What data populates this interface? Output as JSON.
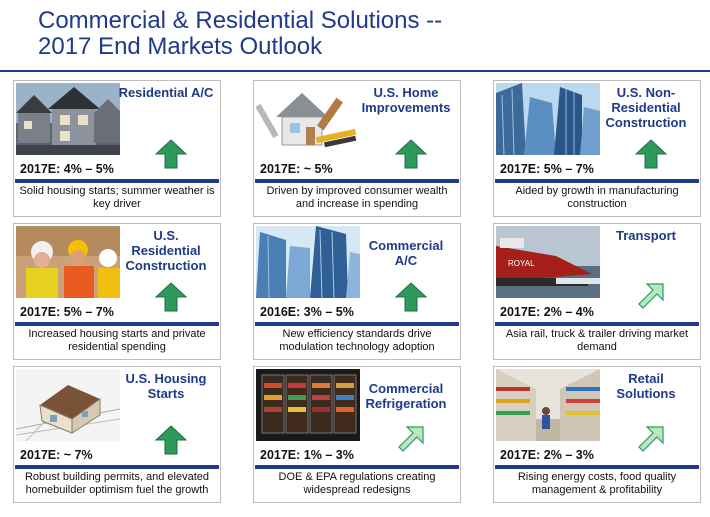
{
  "title": {
    "line1": "Commercial & Residential Solutions --",
    "line2": "2017 End Markets Outlook"
  },
  "colors": {
    "title": "#1f3a8a",
    "bar": "#1f3a8a",
    "arrow_dark": "#2e9a5a",
    "arrow_light": "#b7e8c6"
  },
  "cards": [
    {
      "label": "Residential A/C",
      "estimate": "2017E:  4% – 5%",
      "description": "Solid housing starts; summer weather is key driver",
      "arrow": "up",
      "image": "houses-photo"
    },
    {
      "label": "U.S. Home Improvements",
      "estimate": "2017E: ~ 5%",
      "description": "Driven by improved consumer wealth and increase in spending",
      "arrow": "up",
      "image": "tools-house-photo"
    },
    {
      "label": "U.S. Non-Residential Construction",
      "estimate": "2017E: 5% – 7%",
      "description": "Aided by growth in manufacturing construction",
      "arrow": "up",
      "image": "office-towers-photo"
    },
    {
      "label": "U.S. Residential Construction",
      "estimate": "2017E: 5% – 7%",
      "description": "Increased housing starts and private residential spending",
      "arrow": "up",
      "image": "construction-workers-photo"
    },
    {
      "label": "Commercial A/C",
      "estimate": "2016E: 3% – 5%",
      "description": "New efficiency standards drive modulation technology adoption",
      "arrow": "up",
      "image": "glass-towers-photo"
    },
    {
      "label": "Transport",
      "estimate": "2017E: 2% – 4%",
      "description": "Asia rail, truck & trailer driving market demand",
      "arrow": "diagonal",
      "image": "ship-photo"
    },
    {
      "label": "U.S. Housing Starts",
      "estimate": "2017E: ~ 7%",
      "description": "Robust building permits, and elevated homebuilder optimism fuel the growth",
      "arrow": "up",
      "image": "house-model-photo"
    },
    {
      "label": "Commercial Refrigeration",
      "estimate": "2017E: 1% – 3%",
      "description": "DOE & EPA regulations creating widespread redesigns",
      "arrow": "diagonal",
      "image": "display-cases-photo"
    },
    {
      "label": "Retail Solutions",
      "estimate": "2017E: 2% – 3%",
      "description": "Rising energy costs, food quality management & profitability",
      "arrow": "diagonal",
      "image": "supermarket-photo"
    }
  ]
}
